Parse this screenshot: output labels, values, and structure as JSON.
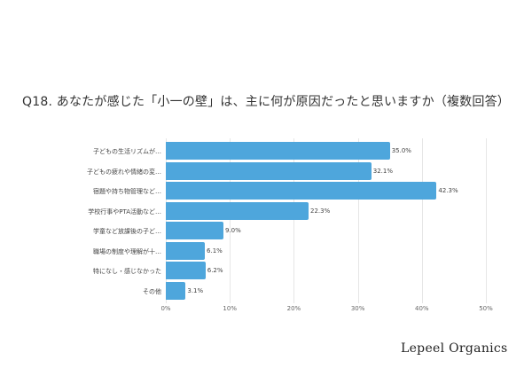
{
  "title": "Q18. あなたが感じた「小一の壁」は、主に何が原因だったと思いますか（複数回答）",
  "brand": "Lepeel Organics",
  "colors": {
    "bar": "#4ea6dc",
    "grid": "#e6e6e6",
    "text": "#444444"
  },
  "chart_data": {
    "type": "bar",
    "orientation": "horizontal",
    "title": "Q18. あなたが感じた「小一の壁」は、主に何が原因だったと思いますか（複数回答）",
    "categories": [
      "子どもの生活リズムが…",
      "子どもの疲れや情緒の変…",
      "宿題や持ち物管理など…",
      "学校行事やPTA活動など…",
      "学童など放課後の子ど…",
      "職場の制度や理解が十…",
      "特になし・感じなかった",
      "その他"
    ],
    "values": [
      35.0,
      32.1,
      42.3,
      22.3,
      9.0,
      6.1,
      6.2,
      3.1
    ],
    "value_labels": [
      "35.0%",
      "32.1%",
      "42.3%",
      "22.3%",
      "9.0%",
      "6.1%",
      "6.2%",
      "3.1%"
    ],
    "xlabel": "",
    "ylabel": "",
    "xlim": [
      0,
      50
    ],
    "xticks": [
      "0%",
      "10%",
      "20%",
      "30%",
      "40%",
      "50%"
    ],
    "grid": true,
    "legend": null
  }
}
